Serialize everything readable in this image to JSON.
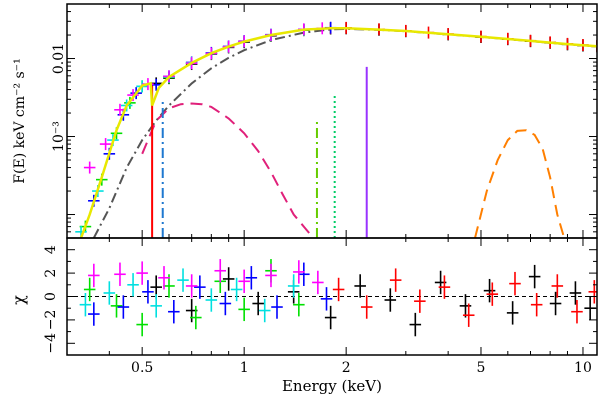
{
  "chart_data": {
    "type": "line",
    "figure_type": "X-ray spectrum with residuals panel",
    "x_axis": {
      "label": "Energy (keV)",
      "scale": "log",
      "range": [
        0.3,
        11
      ],
      "ticks": [
        {
          "value": 0.5,
          "label": "0.5"
        },
        {
          "value": 1,
          "label": "1"
        },
        {
          "value": 2,
          "label": "2"
        },
        {
          "value": 5,
          "label": "5"
        },
        {
          "value": 10,
          "label": "10"
        }
      ]
    },
    "top_panel": {
      "y_label": "F(E) keV  cm⁻² s⁻¹",
      "y_scale": "log",
      "y_range": [
        5e-05,
        0.05
      ],
      "y_ticks": [
        {
          "value": 0.01,
          "label": "0.01"
        },
        {
          "value": 0.001,
          "label": "10⁻³"
        }
      ],
      "total_model": {
        "name": "total model",
        "color": "#e8e800",
        "x": [
          0.33,
          0.35,
          0.38,
          0.42,
          0.45,
          0.5,
          0.53,
          0.535,
          0.56,
          0.6,
          0.7,
          0.8,
          0.9,
          1.0,
          1.2,
          1.5,
          1.8,
          2.0,
          2.5,
          3,
          4,
          5,
          6,
          7,
          8,
          9,
          10,
          11
        ],
        "y": [
          5e-05,
          0.0001,
          0.0003,
          0.0012,
          0.0025,
          0.0045,
          0.0048,
          0.0025,
          0.0042,
          0.0058,
          0.0088,
          0.0117,
          0.0142,
          0.0165,
          0.02,
          0.0235,
          0.0245,
          0.0245,
          0.0235,
          0.0225,
          0.0205,
          0.019,
          0.0178,
          0.0168,
          0.016,
          0.0153,
          0.0148,
          0.0144
        ]
      },
      "datasets": [
        {
          "name": "black",
          "color": "#000000",
          "x": [
            0.55,
            0.6,
            0.7,
            0.8,
            0.9,
            1.0,
            1.2,
            1.5,
            1.8,
            2.0,
            2.5,
            3,
            4,
            5,
            6,
            7,
            8,
            9,
            10,
            11
          ],
          "y": [
            0.0048,
            0.0056,
            0.0085,
            0.0114,
            0.0139,
            0.0162,
            0.0196,
            0.0231,
            0.0243,
            0.0244,
            0.0234,
            0.0224,
            0.0204,
            0.0189,
            0.0177,
            0.0167,
            0.0159,
            0.0152,
            0.0147,
            0.0143
          ]
        },
        {
          "name": "red",
          "color": "#ff0000",
          "x": [
            1.8,
            2.0,
            2.5,
            3,
            3.5,
            4,
            5,
            6,
            7,
            8,
            9,
            10,
            11
          ],
          "y": [
            0.0246,
            0.0247,
            0.0237,
            0.0226,
            0.0215,
            0.0206,
            0.0191,
            0.0179,
            0.0169,
            0.0161,
            0.0154,
            0.0149,
            0.0145
          ]
        },
        {
          "name": "green",
          "color": "#00e000",
          "x": [
            0.34,
            0.38,
            0.42,
            0.46,
            0.5,
            0.6,
            0.7,
            0.8,
            0.9,
            1.0,
            1.2,
            1.5
          ],
          "y": [
            7e-05,
            0.00028,
            0.0011,
            0.0027,
            0.0044,
            0.0057,
            0.0087,
            0.0115,
            0.0141,
            0.0165,
            0.0199,
            0.0232
          ]
        },
        {
          "name": "blue",
          "color": "#0000ff",
          "x": [
            0.36,
            0.4,
            0.44,
            0.48,
            0.55,
            0.6,
            0.7,
            0.8,
            0.9,
            1.0,
            1.2,
            1.5,
            1.8
          ],
          "y": [
            0.00015,
            0.0006,
            0.0019,
            0.0036,
            0.0046,
            0.0059,
            0.0089,
            0.0118,
            0.0143,
            0.0167,
            0.0202,
            0.0236,
            0.0248
          ]
        },
        {
          "name": "cyan",
          "color": "#00e0e0",
          "x": [
            0.33,
            0.37,
            0.41,
            0.45,
            0.5,
            0.6,
            0.7,
            0.8,
            0.9,
            1.0,
            1.2,
            1.5
          ],
          "y": [
            6e-05,
            0.0002,
            0.0009,
            0.0025,
            0.0044,
            0.0058,
            0.0088,
            0.0116,
            0.0142,
            0.0166,
            0.02,
            0.0234
          ]
        },
        {
          "name": "magenta",
          "color": "#ff00ff",
          "x": [
            0.35,
            0.39,
            0.43,
            0.47,
            0.52,
            0.6,
            0.7,
            0.8,
            0.9,
            1.0,
            1.2,
            1.5,
            1.7
          ],
          "y": [
            0.0004,
            0.0008,
            0.0022,
            0.0034,
            0.0047,
            0.0059,
            0.0087,
            0.0116,
            0.0142,
            0.0166,
            0.02,
            0.0236,
            0.0244
          ]
        }
      ],
      "components": [
        {
          "name": "continuum (dash-dot)",
          "color": "#555555",
          "style": "dashdot",
          "x": [
            0.36,
            0.4,
            0.45,
            0.5,
            0.55,
            0.6,
            0.7,
            0.8,
            0.9,
            1.0,
            1.2,
            1.5,
            1.8,
            2.0,
            2.5,
            3,
            4,
            5,
            6,
            7,
            8,
            9,
            10,
            11
          ],
          "y": [
            5e-05,
            0.00012,
            0.0004,
            0.0009,
            0.0016,
            0.0025,
            0.0048,
            0.0075,
            0.0102,
            0.0128,
            0.0172,
            0.0215,
            0.0236,
            0.024,
            0.0233,
            0.0224,
            0.0204,
            0.0189,
            0.0177,
            0.0167,
            0.0159,
            0.0152,
            0.0147,
            0.0143
          ]
        },
        {
          "name": "soft component (dashed)",
          "color": "#e0207a",
          "style": "dashed",
          "x": [
            0.5,
            0.55,
            0.6,
            0.65,
            0.7,
            0.75,
            0.8,
            0.9,
            1.0,
            1.1,
            1.2,
            1.3,
            1.4,
            1.5,
            1.6
          ],
          "y": [
            0.0006,
            0.0016,
            0.0023,
            0.0026,
            0.00265,
            0.0026,
            0.0024,
            0.0017,
            0.0011,
            0.00065,
            0.00035,
            0.00018,
            0.0001,
            7e-05,
            5e-05
          ]
        },
        {
          "name": "hard component (dashed)",
          "color": "#ff7f00",
          "style": "dashed",
          "x": [
            4.8,
            5.2,
            5.6,
            6.0,
            6.4,
            6.8,
            7.2,
            7.6,
            8.0,
            8.4,
            8.8
          ],
          "y": [
            5e-05,
            0.0002,
            0.0005,
            0.0009,
            0.00118,
            0.0012,
            0.00105,
            0.0007,
            0.0003,
            0.0001,
            5e-05
          ]
        }
      ],
      "lines": [
        {
          "name": "emission line 0.53 keV",
          "energy": 0.535,
          "peak": 0.0048,
          "color": "#ff0000",
          "style": "solid"
        },
        {
          "name": "emission line 0.57 keV",
          "energy": 0.575,
          "peak": 0.0028,
          "color": "#1e78d0",
          "style": "dashdot"
        },
        {
          "name": "emission line 1.64 keV",
          "energy": 1.64,
          "peak": 0.0016,
          "color": "#66cc00",
          "style": "dashdot"
        },
        {
          "name": "emission line 1.85 keV",
          "energy": 1.85,
          "peak": 0.0035,
          "color": "#00cc66",
          "style": "dotted"
        },
        {
          "name": "emission line 2.3 keV",
          "energy": 2.3,
          "peak": 0.0078,
          "color": "#9933ff",
          "style": "solid"
        }
      ]
    },
    "bottom_panel": {
      "y_label": "χ",
      "y_range": [
        -5,
        5
      ],
      "y_ticks": [
        {
          "value": 4,
          "label": "4"
        },
        {
          "value": 2,
          "label": "2"
        },
        {
          "value": 0,
          "label": "0"
        },
        {
          "value": -2,
          "label": "−2"
        },
        {
          "value": -4,
          "label": "−4"
        }
      ],
      "reference_line": 0,
      "residuals": [
        {
          "name": "black",
          "color": "#000000",
          "x": [
            0.55,
            0.7,
            0.9,
            1.1,
            1.4,
            1.8,
            2.2,
            2.7,
            3.2,
            3.8,
            4.5,
            5.3,
            6.2,
            7.2,
            8.3,
            9.5,
            10.5
          ],
          "y": [
            0.8,
            -1.2,
            1.5,
            -0.6,
            0.4,
            -1.8,
            0.9,
            -0.3,
            -2.4,
            1.2,
            -0.8,
            0.5,
            -1.4,
            1.7,
            -0.6,
            0.3,
            -1.0
          ]
        },
        {
          "name": "red",
          "color": "#ff0000",
          "x": [
            1.9,
            2.3,
            2.8,
            3.3,
            3.9,
            4.6,
            5.4,
            6.3,
            7.3,
            8.4,
            9.6,
            10.8
          ],
          "y": [
            0.6,
            -0.9,
            1.4,
            -0.4,
            0.8,
            -1.6,
            0.2,
            1.1,
            -0.7,
            0.9,
            -1.3,
            0.4
          ]
        },
        {
          "name": "green",
          "color": "#00e000",
          "x": [
            0.35,
            0.42,
            0.5,
            0.6,
            0.72,
            0.85,
            1.0,
            1.2,
            1.45
          ],
          "y": [
            0.6,
            -0.8,
            -2.4,
            0.9,
            -1.8,
            1.3,
            -1.1,
            2.2,
            -0.7
          ]
        },
        {
          "name": "blue",
          "color": "#0000ff",
          "x": [
            0.36,
            0.44,
            0.52,
            0.62,
            0.74,
            0.88,
            1.05,
            1.25,
            1.5,
            1.75
          ],
          "y": [
            -1.5,
            -0.9,
            0.4,
            -1.3,
            0.8,
            -0.6,
            1.6,
            -0.9,
            1.9,
            -0.2
          ]
        },
        {
          "name": "cyan",
          "color": "#00e0e0",
          "x": [
            0.34,
            0.4,
            0.47,
            0.55,
            0.66,
            0.8,
            0.95,
            1.15,
            1.4
          ],
          "y": [
            -0.7,
            0.3,
            1.0,
            -0.8,
            1.4,
            -0.3,
            0.6,
            -1.2,
            0.9
          ]
        },
        {
          "name": "magenta",
          "color": "#ff00ff",
          "x": [
            0.36,
            0.43,
            0.5,
            0.58,
            0.7,
            0.85,
            1.0,
            1.2,
            1.45,
            1.65
          ],
          "y": [
            1.8,
            1.9,
            2.0,
            1.6,
            0.9,
            2.2,
            1.3,
            1.8,
            2.1,
            1.2
          ]
        }
      ]
    }
  }
}
